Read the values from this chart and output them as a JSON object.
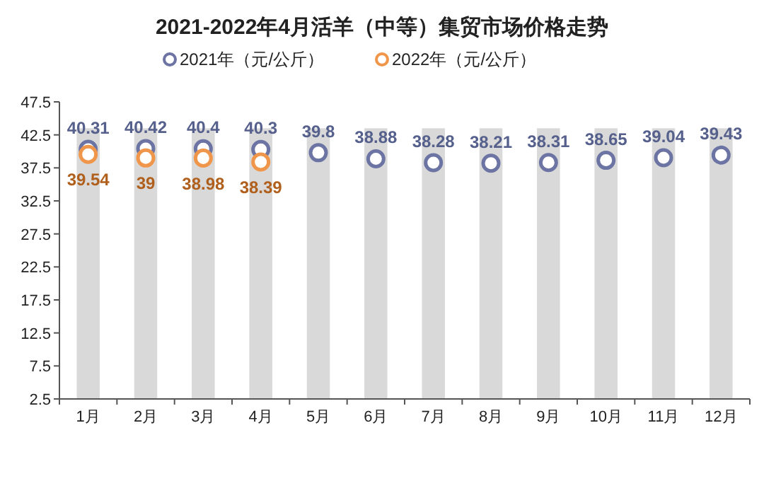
{
  "chart_data": {
    "type": "scatter",
    "title": "2021-2022年4月活羊（中等）集贸市场价格走势",
    "categories": [
      "1月",
      "2月",
      "3月",
      "4月",
      "5月",
      "6月",
      "7月",
      "8月",
      "9月",
      "10月",
      "11月",
      "12月"
    ],
    "ylim": [
      2.5,
      47.5
    ],
    "yticks": [
      2.5,
      7.5,
      12.5,
      17.5,
      22.5,
      27.5,
      32.5,
      37.5,
      42.5,
      47.5
    ],
    "grid": false,
    "legend": "top",
    "marker": "circle",
    "series": [
      {
        "type": "bar",
        "color": "#d9d9d9",
        "values": [
          43.5,
          43.5,
          43.5,
          43.5,
          43.5,
          43.5,
          43.5,
          43.5,
          43.5,
          43.5,
          43.5,
          43.5
        ]
      },
      {
        "name": "2021年（元/公斤）",
        "color": "#6b74a3",
        "values": [
          40.31,
          40.42,
          40.4,
          40.3,
          39.8,
          38.88,
          38.28,
          38.21,
          38.31,
          38.65,
          39.04,
          39.43
        ],
        "value_labels": [
          "40.31",
          "40.42",
          "40.4",
          "40.3",
          "39.8",
          "38.88",
          "38.28",
          "38.21",
          "38.31",
          "38.65",
          "39.04",
          "39.43"
        ]
      },
      {
        "name": "2022年（元/公斤）",
        "color": "#f0964a",
        "values": [
          39.54,
          39,
          38.98,
          38.39,
          null,
          null,
          null,
          null,
          null,
          null,
          null,
          null
        ],
        "value_labels": [
          "39.54",
          "39",
          "38.98",
          "38.39",
          null,
          null,
          null,
          null,
          null,
          null,
          null,
          null
        ]
      }
    ]
  }
}
